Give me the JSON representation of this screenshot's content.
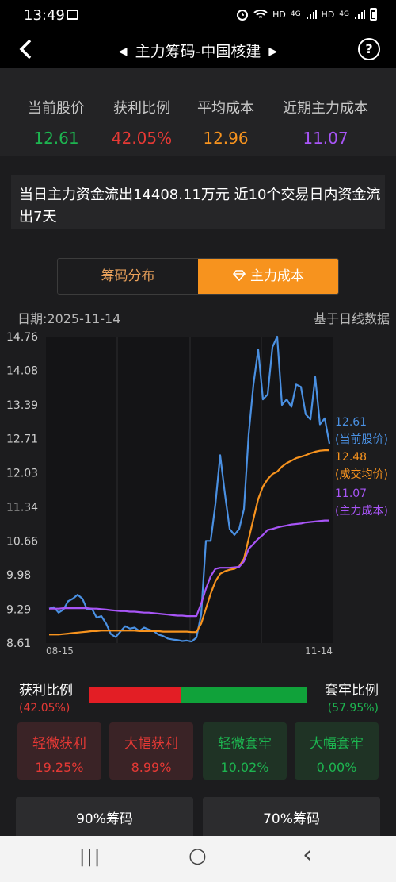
{
  "status": {
    "time": "13:49",
    "icons": [
      "image-icon",
      "alarm-icon",
      "wifi-icon",
      "hd-icon",
      "signal-icon",
      "battery-icon"
    ],
    "net_labels": [
      "HD",
      "4G",
      "HD",
      "4G"
    ]
  },
  "nav": {
    "back_icon": "chevron-left-icon",
    "prev_icon": "triangle-left-icon",
    "title": "主力筹码-中国核建",
    "next_icon": "triangle-right-icon",
    "help": "?"
  },
  "stats": [
    {
      "label": "当前股价",
      "value": "12.61",
      "color": "#1db550"
    },
    {
      "label": "获利比例",
      "value": "42.05%",
      "color": "#e53935"
    },
    {
      "label": "平均成本",
      "value": "12.96",
      "color": "#f7931e"
    },
    {
      "label": "近期主力成本",
      "value": "11.07",
      "color": "#a855f7"
    }
  ],
  "flow_text": "当日主力资金流出14408.11万元 近10个交易日内资金流出7天",
  "tabs": {
    "left": "筹码分布",
    "right": "主力成本",
    "right_icon": "diamond-icon"
  },
  "date_label": "日期:2025-11-14",
  "basis_label": "基于日线数据",
  "colors": {
    "price": "#4a90e2",
    "avg": "#f7931e",
    "main": "#a855f7"
  },
  "chart_data": {
    "type": "line",
    "y_ticks": [
      "14.76",
      "14.08",
      "13.39",
      "12.71",
      "12.03",
      "11.34",
      "10.66",
      "9.98",
      "9.29",
      "8.61"
    ],
    "ylim": [
      8.61,
      14.76
    ],
    "x_start_label": "08-15",
    "x_end_label": "11-14",
    "series": [
      {
        "name": "当前股价",
        "key": "price",
        "values": [
          9.3,
          9.33,
          9.22,
          9.28,
          9.45,
          9.5,
          9.58,
          9.5,
          9.28,
          9.3,
          9.12,
          9.15,
          9.0,
          8.79,
          8.73,
          8.84,
          8.95,
          8.9,
          8.92,
          8.85,
          8.92,
          8.88,
          8.85,
          8.78,
          8.75,
          8.7,
          8.68,
          8.67,
          8.65,
          8.66,
          8.64,
          8.72,
          9.18,
          10.66,
          10.66,
          11.4,
          12.38,
          11.6,
          10.9,
          10.78,
          10.9,
          11.3,
          12.8,
          13.8,
          14.5,
          13.5,
          13.6,
          14.55,
          14.76,
          13.39,
          13.5,
          13.35,
          13.8,
          13.75,
          13.2,
          13.1,
          13.95,
          13.0,
          13.12,
          12.61
        ]
      },
      {
        "name": "成交均价",
        "key": "avg",
        "values": [
          8.78,
          8.78,
          8.78,
          8.79,
          8.8,
          8.81,
          8.82,
          8.83,
          8.84,
          8.85,
          8.85,
          8.86,
          8.86,
          8.86,
          8.86,
          8.86,
          8.86,
          8.86,
          8.86,
          8.85,
          8.85,
          8.85,
          8.85,
          8.85,
          8.84,
          8.84,
          8.84,
          8.84,
          8.84,
          8.84,
          8.83,
          8.83,
          9.0,
          9.3,
          9.6,
          9.85,
          10.0,
          10.05,
          10.08,
          10.1,
          10.15,
          10.3,
          10.7,
          11.1,
          11.5,
          11.75,
          11.9,
          12.0,
          12.05,
          12.15,
          12.22,
          12.27,
          12.32,
          12.35,
          12.38,
          12.42,
          12.45,
          12.47,
          12.48,
          12.48
        ]
      },
      {
        "name": "主力成本",
        "key": "main",
        "values": [
          9.3,
          9.3,
          9.3,
          9.31,
          9.31,
          9.31,
          9.31,
          9.31,
          9.31,
          9.3,
          9.3,
          9.29,
          9.28,
          9.27,
          9.26,
          9.25,
          9.25,
          9.24,
          9.24,
          9.23,
          9.22,
          9.22,
          9.21,
          9.2,
          9.19,
          9.18,
          9.17,
          9.16,
          9.16,
          9.15,
          9.15,
          9.15,
          9.4,
          9.7,
          9.95,
          10.1,
          10.12,
          10.12,
          10.12,
          10.13,
          10.14,
          10.25,
          10.5,
          10.6,
          10.7,
          10.78,
          10.88,
          10.9,
          10.93,
          10.95,
          10.97,
          10.99,
          11.0,
          11.01,
          11.03,
          11.04,
          11.05,
          11.06,
          11.07,
          11.07
        ]
      }
    ],
    "end_labels": [
      {
        "value": "12.61",
        "name": "(当前股价)"
      },
      {
        "value": "12.48",
        "name": "(成交均价)"
      },
      {
        "value": "11.07",
        "name": "(主力成本)"
      }
    ]
  },
  "ratio": {
    "profit_label": "获利比例",
    "profit_pct": "(42.05%)",
    "profit_fraction": 0.4205,
    "trapped_label": "套牢比例",
    "trapped_pct": "(57.95%)"
  },
  "cards": [
    {
      "title": "轻微获利",
      "value": "19.25%",
      "tone": "red"
    },
    {
      "title": "大幅获利",
      "value": "8.99%",
      "tone": "red"
    },
    {
      "title": "轻微套牢",
      "value": "10.02%",
      "tone": "green"
    },
    {
      "title": "大幅套牢",
      "value": "0.00%",
      "tone": "green"
    }
  ],
  "buttons": [
    "90%筹码",
    "70%筹码"
  ],
  "sysnav": {
    "recent": "|||",
    "home": "○",
    "back": "‹"
  }
}
